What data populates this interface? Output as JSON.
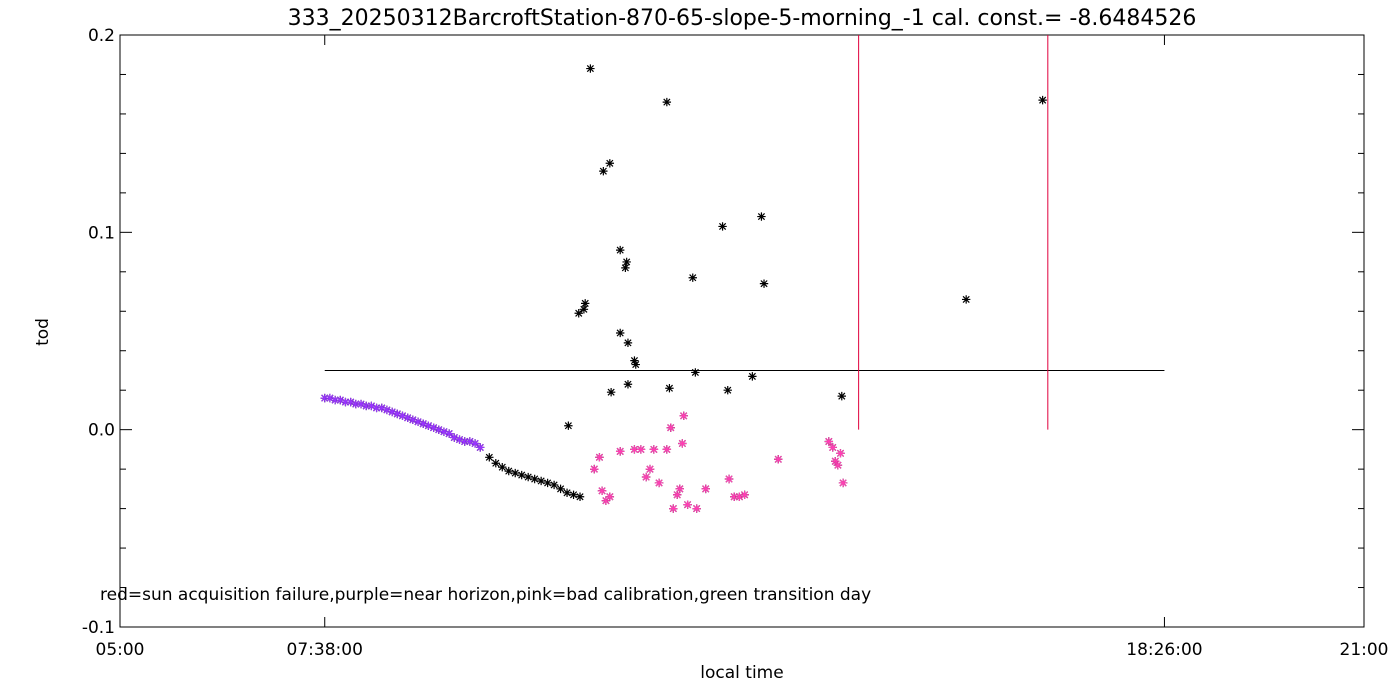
{
  "chart_data": {
    "type": "scatter",
    "title": "333_20250312BarcroftStation-870-65-slope-5-morning_-1 cal. const.= -8.6484526",
    "xlabel": "local time",
    "ylabel": "tod",
    "xlim": [
      "05:00",
      "21:00"
    ],
    "ylim": [
      -0.1,
      0.2
    ],
    "x_ticks": [
      {
        "value": "05:00",
        "label": "05:00"
      },
      {
        "value": "07:38",
        "label": "07:38:00"
      },
      {
        "value": "18:26",
        "label": "18:26:00"
      },
      {
        "value": "21:00",
        "label": "21:00"
      }
    ],
    "y_ticks": [
      {
        "value": -0.1,
        "label": "-0.1"
      },
      {
        "value": 0.0,
        "label": "0.0"
      },
      {
        "value": 0.1,
        "label": "0.1"
      },
      {
        "value": 0.2,
        "label": "0.2"
      }
    ],
    "annotation": "red=sun acquisition failure,purple=near horizon,pink=bad calibration,green transition day",
    "threshold_line": {
      "y": 0.03,
      "x_from": "07:38",
      "x_to": "18:26",
      "color": "#000000"
    },
    "red_lines": [
      {
        "x": "14:30",
        "y_from": 0.0,
        "y_to": 0.2,
        "color": "#e0003c"
      },
      {
        "x": "16:56",
        "y_from": 0.0,
        "y_to": 0.2,
        "color": "#e0003c"
      }
    ],
    "series": [
      {
        "marker": "asterisk",
        "color": "#000000",
        "points": [
          [
            "11:03",
            0.183
          ],
          [
            "11:13",
            0.131
          ],
          [
            "11:18",
            0.135
          ],
          [
            "12:02",
            0.166
          ],
          [
            "10:54",
            0.059
          ],
          [
            "10:58",
            0.061
          ],
          [
            "10:59",
            0.064
          ],
          [
            "11:26",
            0.091
          ],
          [
            "11:30",
            0.082
          ],
          [
            "11:31",
            0.085
          ],
          [
            "11:26",
            0.049
          ],
          [
            "11:32",
            0.044
          ],
          [
            "11:37",
            0.035
          ],
          [
            "11:38",
            0.033
          ],
          [
            "11:32",
            0.023
          ],
          [
            "11:19",
            0.019
          ],
          [
            "12:04",
            0.021
          ],
          [
            "12:22",
            0.077
          ],
          [
            "12:24",
            0.029
          ],
          [
            "12:45",
            0.103
          ],
          [
            "12:49",
            0.02
          ],
          [
            "13:15",
            0.108
          ],
          [
            "13:17",
            0.074
          ],
          [
            "13:08",
            0.027
          ],
          [
            "14:17",
            0.017
          ],
          [
            "15:53",
            0.066
          ],
          [
            "16:52",
            0.167
          ],
          [
            "10:46",
            0.002
          ],
          [
            "09:45",
            -0.014
          ],
          [
            "09:50",
            -0.017
          ],
          [
            "09:55",
            -0.019
          ],
          [
            "10:00",
            -0.021
          ],
          [
            "10:05",
            -0.022
          ],
          [
            "10:10",
            -0.023
          ],
          [
            "10:15",
            -0.024
          ],
          [
            "10:20",
            -0.025
          ],
          [
            "10:25",
            -0.026
          ],
          [
            "10:30",
            -0.027
          ],
          [
            "10:35",
            -0.028
          ],
          [
            "10:40",
            -0.03
          ],
          [
            "10:45",
            -0.032
          ],
          [
            "10:50",
            -0.033
          ],
          [
            "10:55",
            -0.034
          ]
        ]
      },
      {
        "marker": "asterisk",
        "color": "#9933ff",
        "points": [
          [
            "07:38",
            0.016
          ],
          [
            "07:42",
            0.016
          ],
          [
            "07:46",
            0.015
          ],
          [
            "07:50",
            0.015
          ],
          [
            "07:54",
            0.014
          ],
          [
            "07:58",
            0.014
          ],
          [
            "08:02",
            0.013
          ],
          [
            "08:06",
            0.013
          ],
          [
            "08:10",
            0.012
          ],
          [
            "08:14",
            0.012
          ],
          [
            "08:18",
            0.011
          ],
          [
            "08:22",
            0.011
          ],
          [
            "08:26",
            0.01
          ],
          [
            "08:30",
            0.009
          ],
          [
            "08:34",
            0.008
          ],
          [
            "08:38",
            0.007
          ],
          [
            "08:42",
            0.006
          ],
          [
            "08:46",
            0.005
          ],
          [
            "08:50",
            0.004
          ],
          [
            "08:54",
            0.003
          ],
          [
            "08:58",
            0.002
          ],
          [
            "09:02",
            0.001
          ],
          [
            "09:06",
            0.0
          ],
          [
            "09:10",
            -0.001
          ],
          [
            "09:14",
            -0.002
          ],
          [
            "09:18",
            -0.004
          ],
          [
            "09:22",
            -0.005
          ],
          [
            "09:26",
            -0.006
          ],
          [
            "09:30",
            -0.006
          ],
          [
            "09:34",
            -0.007
          ],
          [
            "09:38",
            -0.009
          ]
        ]
      },
      {
        "marker": "asterisk",
        "color": "#ff3fb4",
        "points": [
          [
            "11:06",
            -0.02
          ],
          [
            "11:10",
            -0.014
          ],
          [
            "11:12",
            -0.031
          ],
          [
            "11:15",
            -0.036
          ],
          [
            "11:18",
            -0.034
          ],
          [
            "11:26",
            -0.011
          ],
          [
            "11:37",
            -0.01
          ],
          [
            "11:42",
            -0.01
          ],
          [
            "11:46",
            -0.024
          ],
          [
            "11:49",
            -0.02
          ],
          [
            "11:52",
            -0.01
          ],
          [
            "11:56",
            -0.027
          ],
          [
            "12:02",
            -0.01
          ],
          [
            "12:05",
            0.001
          ],
          [
            "12:07",
            -0.04
          ],
          [
            "12:10",
            -0.033
          ],
          [
            "12:12",
            -0.03
          ],
          [
            "12:14",
            -0.007
          ],
          [
            "12:15",
            0.007
          ],
          [
            "12:18",
            -0.038
          ],
          [
            "12:25",
            -0.04
          ],
          [
            "12:32",
            -0.03
          ],
          [
            "12:50",
            -0.025
          ],
          [
            "12:54",
            -0.034
          ],
          [
            "12:58",
            -0.034
          ],
          [
            "13:02",
            -0.033
          ],
          [
            "13:28",
            -0.015
          ],
          [
            "14:07",
            -0.006
          ],
          [
            "14:10",
            -0.009
          ],
          [
            "14:12",
            -0.016
          ],
          [
            "14:14",
            -0.018
          ],
          [
            "14:16",
            -0.012
          ],
          [
            "14:18",
            -0.027
          ]
        ]
      }
    ]
  }
}
